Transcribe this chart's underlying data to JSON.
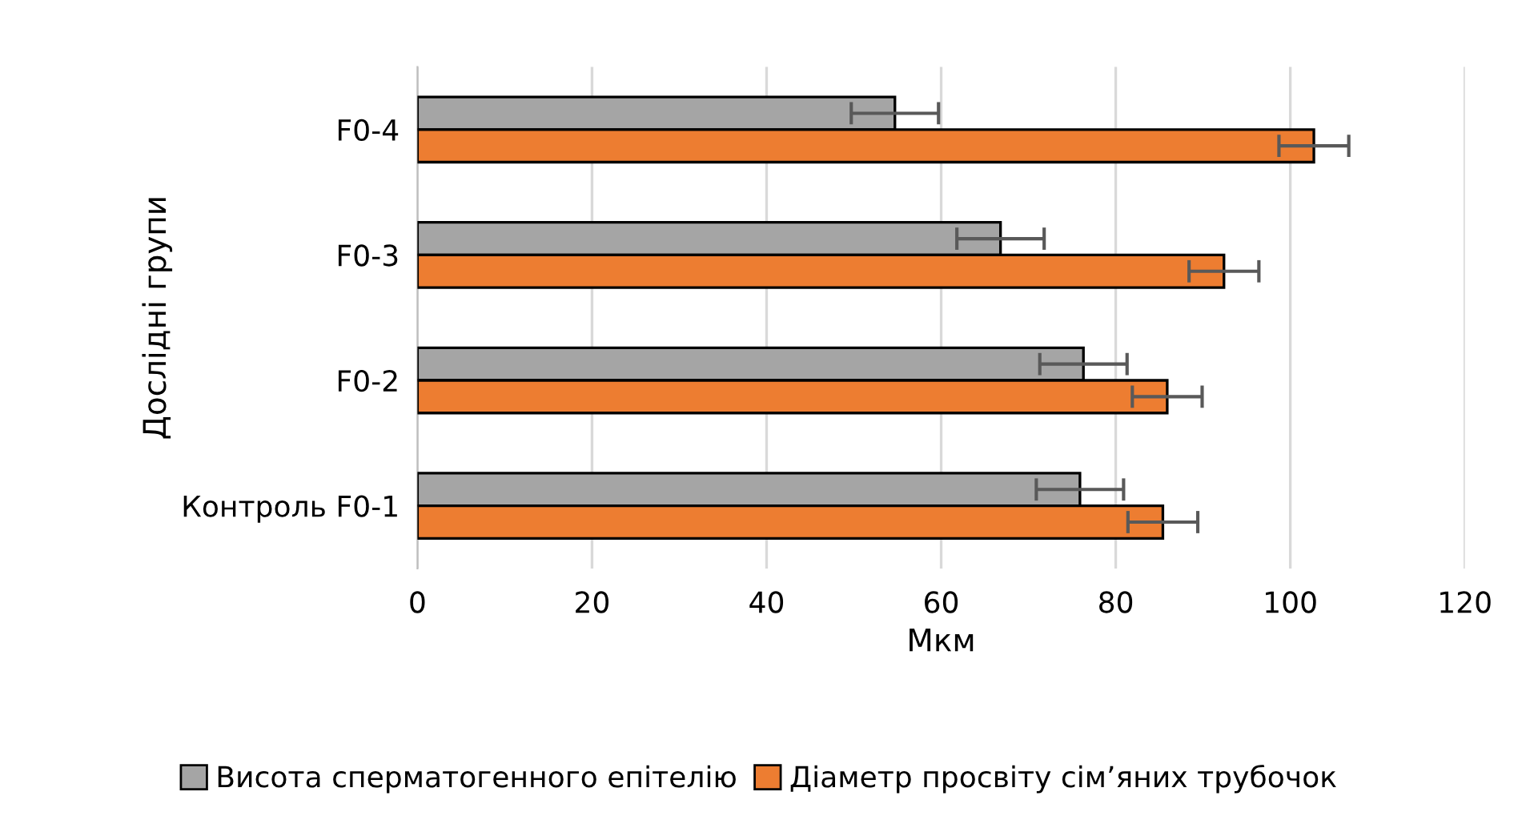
{
  "chart_data": {
    "type": "bar",
    "orientation": "horizontal",
    "xlabel": "Мкм",
    "ylabel": "Дослідні групи",
    "categories": [
      "F0-4",
      "F0-3",
      "F0-2",
      "Контроль F0-1"
    ],
    "series": [
      {
        "name": "Висота сперматогенного епітелію",
        "color": "#a5a5a5",
        "values": [
          54.7,
          66.8,
          76.3,
          75.9
        ],
        "errors": [
          5,
          5,
          5,
          5
        ]
      },
      {
        "name": "Діаметр просвіту сім’яних трубочок",
        "color": "#ed7d31",
        "values": [
          102.7,
          92.4,
          85.9,
          85.4
        ],
        "errors": [
          4,
          4,
          4,
          4
        ]
      }
    ],
    "xlim": [
      0,
      120
    ],
    "xticks": [
      0,
      20,
      40,
      60,
      80,
      100,
      120
    ],
    "grid": "x",
    "legend": "bottom"
  }
}
